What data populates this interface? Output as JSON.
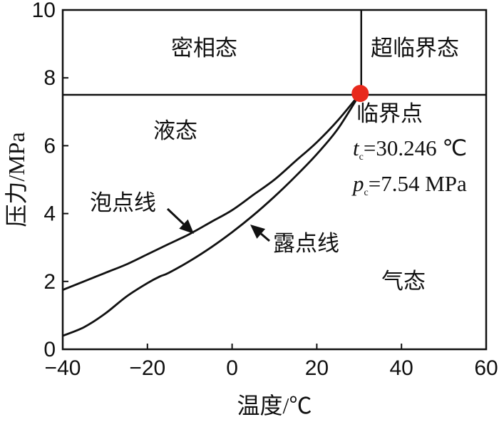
{
  "chart_data": {
    "type": "line",
    "title": "",
    "xlabel": "温度/℃",
    "ylabel": "压力/MPa",
    "xlim": [
      -40,
      60
    ],
    "ylim": [
      0,
      10
    ],
    "xticks": [
      -40,
      -20,
      0,
      20,
      40,
      60
    ],
    "yticks": [
      0,
      2,
      4,
      6,
      8,
      10
    ],
    "xtick_labels": [
      "−40",
      "−20",
      "0",
      "20",
      "40",
      "60"
    ],
    "ytick_labels": [
      "0",
      "2",
      "4",
      "6",
      "8",
      "10"
    ],
    "grid": false,
    "series": [
      {
        "name": "泡点线",
        "x": [
          -40,
          -35,
          -30,
          -25,
          -20,
          -15,
          -10,
          -5,
          0,
          5,
          10,
          15,
          20,
          25,
          30.246
        ],
        "y": [
          1.75,
          2.0,
          2.25,
          2.5,
          2.8,
          3.1,
          3.4,
          3.75,
          4.1,
          4.55,
          5.0,
          5.55,
          6.1,
          6.75,
          7.54
        ]
      },
      {
        "name": "露点线",
        "x": [
          -40,
          -35,
          -30,
          -25,
          -20,
          -17,
          -15,
          -10,
          -5,
          0,
          5,
          10,
          15,
          20,
          25,
          30.246
        ],
        "y": [
          0.4,
          0.65,
          1.05,
          1.55,
          1.95,
          2.15,
          2.25,
          2.6,
          3.0,
          3.45,
          3.95,
          4.5,
          5.1,
          5.75,
          6.5,
          7.54
        ]
      }
    ],
    "critical_point": {
      "x": 30.246,
      "y": 7.54,
      "color": "#e8291c"
    },
    "boundary_lines": [
      {
        "orientation": "horizontal",
        "value": 7.5
      },
      {
        "orientation": "vertical",
        "value": 30.5
      }
    ],
    "region_labels": {
      "dense": "密相态",
      "supercritical": "超临界态",
      "liquid": "液态",
      "gas": "气态"
    },
    "annotations": {
      "bubble_line": "泡点线",
      "dew_line": "露点线",
      "critical_title": "临界点",
      "tc_symbol": "t",
      "tc_sub": "c",
      "tc_value": "=30.246 ℃",
      "pc_symbol": "p",
      "pc_sub": "c",
      "pc_value": "=7.54 MPa"
    }
  }
}
